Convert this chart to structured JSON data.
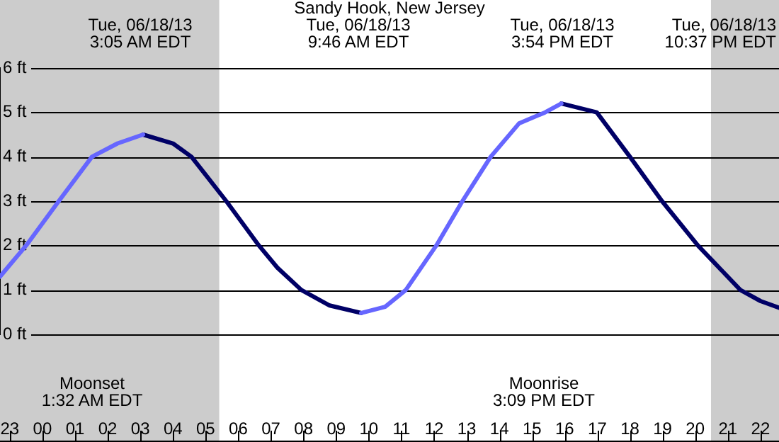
{
  "chart_data": {
    "type": "line",
    "title": "Sandy Hook, New Jersey",
    "xlim": [
      "--06-17T22:42",
      "--06-18T22:34"
    ],
    "ylim": [
      0,
      6
    ],
    "xticks": [
      {
        "value": "--06-17T23:00",
        "label": "23"
      },
      {
        "value": "--06-18T00:00",
        "label": "00"
      },
      {
        "value": "--06-18T01:00",
        "label": "01"
      },
      {
        "value": "--06-18T02:00",
        "label": "02"
      },
      {
        "value": "--06-18T03:00",
        "label": "03"
      },
      {
        "value": "--06-18T04:00",
        "label": "04"
      },
      {
        "value": "--06-18T05:00",
        "label": "05"
      },
      {
        "value": "--06-18T06:00",
        "label": "06"
      },
      {
        "value": "--06-18T07:00",
        "label": "07"
      },
      {
        "value": "--06-18T08:00",
        "label": "08"
      },
      {
        "value": "--06-18T09:00",
        "label": "09"
      },
      {
        "value": "--06-18T10:00",
        "label": "10"
      },
      {
        "value": "--06-18T11:00",
        "label": "11"
      },
      {
        "value": "--06-18T12:00",
        "label": "12"
      },
      {
        "value": "--06-18T13:00",
        "label": "13"
      },
      {
        "value": "--06-18T14:00",
        "label": "14"
      },
      {
        "value": "--06-18T15:00",
        "label": "15"
      },
      {
        "value": "--06-18T16:00",
        "label": "16"
      },
      {
        "value": "--06-18T17:00",
        "label": "17"
      },
      {
        "value": "--06-18T18:00",
        "label": "18"
      },
      {
        "value": "--06-18T19:00",
        "label": "19"
      },
      {
        "value": "--06-18T20:00",
        "label": "20"
      },
      {
        "value": "--06-18T21:00",
        "label": "21"
      },
      {
        "value": "--06-18T22:00",
        "label": "22"
      }
    ],
    "yticks": [
      {
        "value": 0,
        "label": "0 ft"
      },
      {
        "value": 1,
        "label": "1 ft"
      },
      {
        "value": 2,
        "label": "2 ft"
      },
      {
        "value": 3,
        "label": "3 ft"
      },
      {
        "value": 4,
        "label": "4 ft"
      },
      {
        "value": 5,
        "label": "5 ft"
      },
      {
        "value": 6,
        "label": "6 ft"
      }
    ],
    "grid": "y",
    "marker": "none",
    "line_style": "solid",
    "legend": false,
    "series": [
      {
        "color": "#6666ff",
        "x": [
          "--06-17T22:42",
          "--06-17T23:30",
          "--06-18T00:30",
          "--06-18T01:31",
          "--06-18T02:18",
          "--06-18T03:05",
          "--06-18T06:24",
          "--06-18T09:46",
          "--06-18T10:30",
          "--06-18T11:08",
          "--06-18T12:04",
          "--06-18T12:52",
          "--06-18T13:44",
          "--06-18T14:36",
          "--06-18T15:24",
          "--06-18T15:54"
        ],
        "values": [
          1.3,
          2,
          3,
          4,
          4.3,
          4.5,
          null,
          0.48,
          0.62,
          1,
          2,
          3,
          4,
          4.75,
          5,
          5.2
        ]
      },
      {
        "color": "#000066",
        "x": [
          "--06-18T03:05",
          "--06-18T04:00",
          "--06-18T04:34",
          "--06-18T05:06",
          "--06-18T05:38",
          "--06-18T06:38",
          "--06-18T07:12",
          "--06-18T07:56",
          "--06-18T08:48",
          "--06-18T09:46",
          "--06-18T12:48",
          "--06-18T15:54",
          "--06-18T16:59",
          "--06-18T18:00",
          "--06-18T18:59",
          "--06-18T20:05",
          "--06-18T21:23",
          "--06-18T22:00",
          "--06-18T22:34"
        ],
        "values": [
          4.5,
          4.3,
          4,
          3.5,
          3,
          2,
          1.5,
          1,
          0.65,
          0.48,
          null,
          5.2,
          5,
          4,
          3,
          2,
          1,
          0.75,
          0.6
        ]
      }
    ],
    "bands": [
      {
        "axis": "x",
        "from": "--06-17T22:42",
        "to": "--06-18T05:25",
        "color": "#cccccc"
      },
      {
        "axis": "x",
        "from": "--06-18T20:29",
        "to": "--06-18T22:34",
        "color": "#cccccc"
      }
    ],
    "annotations": [
      "Tue, 06/18/13\n3:05 AM EDT",
      "Tue, 06/18/13\n9:46 AM EDT",
      "Tue, 06/18/13\n3:54 PM EDT",
      "Tue, 06/18/13\n10:37 PM EDT",
      "Moonset\n1:32 AM EDT",
      "Moonrise\n3:09 PM EDT"
    ]
  }
}
